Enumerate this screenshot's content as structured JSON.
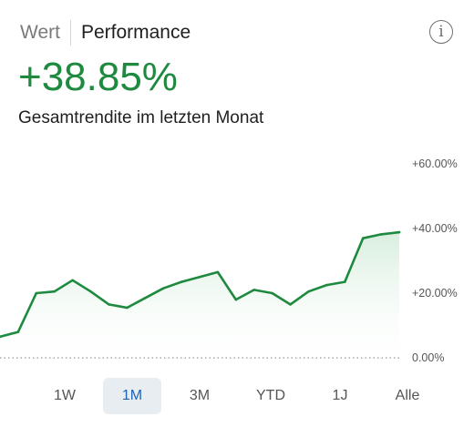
{
  "header": {
    "tabs": [
      {
        "label": "Wert",
        "active": false
      },
      {
        "label": "Performance",
        "active": true
      }
    ],
    "info_icon": "info-icon",
    "info_glyph": "i"
  },
  "summary": {
    "value": "+38.85%",
    "caption": "Gesamtrendite im letzten Monat",
    "value_color": "#1e8a3f"
  },
  "periods": {
    "items": [
      "1W",
      "1M",
      "3M",
      "YTD",
      "1J",
      "Alle"
    ],
    "selected": "1M"
  },
  "colors": {
    "line": "#1e8a3f",
    "fill": "#e6f3ea",
    "selected_period_bg": "#e8edf2",
    "selected_period_text": "#1f63b4"
  },
  "chart_data": {
    "type": "area",
    "title": "",
    "xlabel": "",
    "ylabel": "",
    "ylim": [
      0,
      60
    ],
    "y_ticks": [
      "+60.00%",
      "+40.00%",
      "+20.00%",
      "0.00%"
    ],
    "y_tick_values": [
      60,
      40,
      20,
      0
    ],
    "baseline_value": 0,
    "grid": false,
    "series": [
      {
        "values": [
          6.5,
          8,
          20,
          20.5,
          24,
          20.5,
          16.5,
          15.5,
          18.5,
          21.5,
          23.5,
          25,
          26.5,
          18,
          21,
          20,
          16.5,
          20.5,
          22.5,
          23.5,
          37,
          38.2,
          38.85
        ]
      }
    ]
  }
}
